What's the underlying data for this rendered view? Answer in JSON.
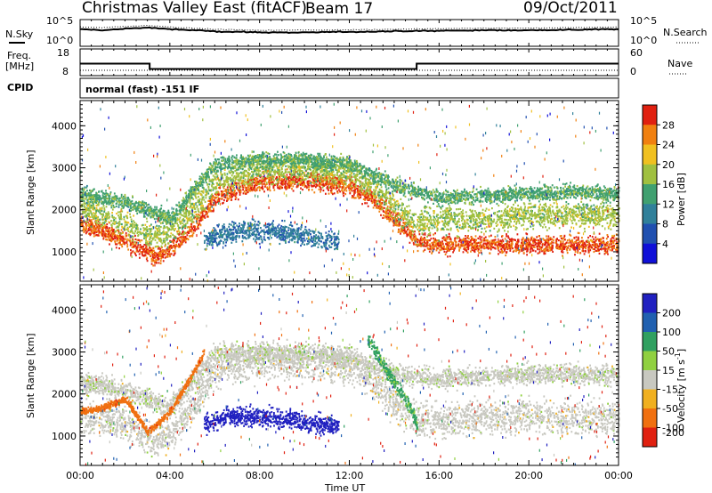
{
  "header": {
    "station": "Christmas Valley East (fitACF)",
    "beam": "Beam 17",
    "date": "09/Oct/2011"
  },
  "side_labels": {
    "nsky": "N.Sky",
    "nsearch": "N.Search",
    "freq_line1": "Freq.",
    "freq_line2": "[MHz]",
    "nave": "Nave",
    "cpid": "CPID"
  },
  "cpid_text": "normal (fast) -151 IF",
  "chart_data": [
    {
      "type": "line",
      "name": "noise-panel",
      "y_ticks_left": [
        "10^5",
        "10^0"
      ],
      "y_ticks_right": [
        "10^5",
        "10^0"
      ],
      "x_hours": [
        0,
        1,
        2,
        3,
        4,
        5,
        6,
        8,
        10,
        12,
        14,
        16,
        18,
        20,
        22,
        24
      ],
      "nsky_level": [
        3.2,
        3.0,
        3.3,
        3.5,
        3.2,
        3.0,
        2.8,
        2.6,
        2.6,
        2.7,
        2.8,
        2.9,
        3.0,
        3.0,
        3.1,
        3.2
      ],
      "nsearch_level": [
        3.6,
        3.5,
        3.7,
        3.9,
        3.6,
        3.4,
        3.2,
        3.0,
        3.0,
        3.1,
        3.2,
        3.3,
        3.4,
        3.4,
        3.5,
        3.6
      ]
    },
    {
      "type": "line",
      "name": "frequency-panel",
      "y_ticks_left": [
        "18",
        "8"
      ],
      "y_ticks_right": [
        "60",
        "0"
      ],
      "freq_steps": [
        [
          0,
          12.5
        ],
        [
          3.1,
          10.5
        ],
        [
          15.0,
          12.5
        ],
        [
          24,
          12.5
        ]
      ],
      "nave_level": 12
    },
    {
      "type": "heatmap",
      "name": "power",
      "title": "",
      "xlabel": "",
      "ylabel": "Slant Range [km]",
      "xlim": [
        0,
        24
      ],
      "ylim": [
        300,
        4600
      ],
      "y_ticks": [
        1000,
        2000,
        3000,
        4000
      ],
      "colorbar": {
        "label": "Power [dB]",
        "range": [
          0,
          32
        ],
        "ticks": [
          4,
          8,
          12,
          16,
          20,
          24,
          28
        ],
        "colors": [
          "#1010d8",
          "#2050b0",
          "#30809a",
          "#40a070",
          "#a0c040",
          "#f0c020",
          "#f08010",
          "#e02010"
        ]
      },
      "bands": [
        {
          "label": "ground-scatter lower edge",
          "hours": [
            0,
            1,
            2,
            3,
            3.4,
            4,
            5,
            6,
            8,
            10,
            12,
            13,
            14,
            15,
            16,
            18,
            20,
            22,
            24
          ],
          "range_km": [
            1700,
            1500,
            1300,
            1000,
            900,
            1100,
            1600,
            2300,
            2700,
            2700,
            2600,
            2300,
            1800,
            1300,
            1200,
            1200,
            1200,
            1200,
            1200
          ],
          "width_km": 320,
          "power_db": 28
        },
        {
          "label": "ground-scatter mid layer",
          "hours": [
            0,
            1,
            2,
            3,
            4,
            5,
            6,
            8,
            10,
            12,
            13,
            14,
            15,
            16,
            18,
            20,
            22,
            24
          ],
          "range_km": [
            2100,
            1900,
            1700,
            1400,
            1500,
            2000,
            2700,
            3000,
            3000,
            2900,
            2600,
            2100,
            1700,
            1800,
            1800,
            1900,
            1900,
            1900
          ],
          "width_km": 450,
          "power_db": 18
        },
        {
          "label": "upper layer",
          "hours": [
            0,
            2,
            4,
            6,
            8,
            10,
            12,
            14,
            16,
            18,
            20,
            22,
            24
          ],
          "range_km": [
            2400,
            2200,
            1800,
            3100,
            3200,
            3200,
            3100,
            2600,
            2300,
            2350,
            2400,
            2450,
            2400
          ],
          "width_km": 250,
          "power_db": 15
        },
        {
          "label": "ionospheric patch",
          "hours": [
            5.5,
            6.5,
            7.5,
            8.5,
            9.5,
            10.5,
            11.5
          ],
          "range_km": [
            1300,
            1450,
            1550,
            1500,
            1450,
            1350,
            1250
          ],
          "width_km": 350,
          "power_db": 9
        }
      ]
    },
    {
      "type": "heatmap",
      "name": "velocity",
      "title": "",
      "xlabel": "Time UT",
      "ylabel": "Slant Range [km]",
      "xlim": [
        0,
        24
      ],
      "ylim": [
        300,
        4600
      ],
      "x_ticks": [
        "00:00",
        "04:00",
        "08:00",
        "12:00",
        "16:00",
        "20:00",
        "00:00"
      ],
      "y_ticks": [
        1000,
        2000,
        3000,
        4000
      ],
      "colorbar": {
        "label": "Velocity [m s^-1]",
        "range": [
          -250,
          250
        ],
        "ticks": [
          200,
          100,
          50,
          15,
          -15,
          -50,
          -100,
          -200
        ],
        "colors": [
          "#2020c0",
          "#2060b0",
          "#30a060",
          "#90d040",
          "#c8c8c0",
          "#f0b020",
          "#f07010",
          "#e02010"
        ]
      },
      "bands": [
        {
          "label": "ground scatter low velocity",
          "hours": [
            0,
            1,
            2,
            3,
            3.4,
            4,
            5,
            6,
            8,
            10,
            12,
            13,
            14,
            15,
            16,
            18,
            20,
            22,
            24
          ],
          "range_km": [
            1500,
            1400,
            1300,
            1000,
            900,
            1100,
            1700,
            2600,
            2800,
            2800,
            2700,
            2300,
            1800,
            1400,
            1400,
            1450,
            1500,
            1450,
            1450
          ],
          "width_km": 600,
          "velocity": 0
        },
        {
          "label": "upper grey layer",
          "hours": [
            0,
            2,
            4,
            6,
            8,
            10,
            12,
            14,
            16,
            18,
            20,
            22,
            24
          ],
          "range_km": [
            2300,
            2100,
            1700,
            3000,
            3000,
            3000,
            2900,
            2500,
            2400,
            2450,
            2500,
            2500,
            2450
          ],
          "width_km": 350,
          "velocity": 5
        },
        {
          "label": "descending green streak",
          "hours": [
            12.8,
            13.4,
            14.0,
            14.6,
            15.0
          ],
          "range_km": [
            3300,
            2800,
            2300,
            1800,
            1300
          ],
          "width_km": 250,
          "velocity": 40
        },
        {
          "label": "eastward flow patch",
          "hours": [
            5.5,
            6.5,
            7.5,
            8.5,
            9.5,
            10.5,
            11.5
          ],
          "range_km": [
            1300,
            1450,
            1500,
            1450,
            1400,
            1300,
            1250
          ],
          "width_km": 320,
          "velocity": 180
        },
        {
          "label": "early orange streak",
          "hours": [
            0,
            1,
            2,
            3,
            4,
            5,
            5.5
          ],
          "range_km": [
            1600,
            1700,
            1900,
            1100,
            1600,
            2500,
            3000
          ],
          "width_km": 120,
          "velocity": -60
        }
      ]
    }
  ]
}
